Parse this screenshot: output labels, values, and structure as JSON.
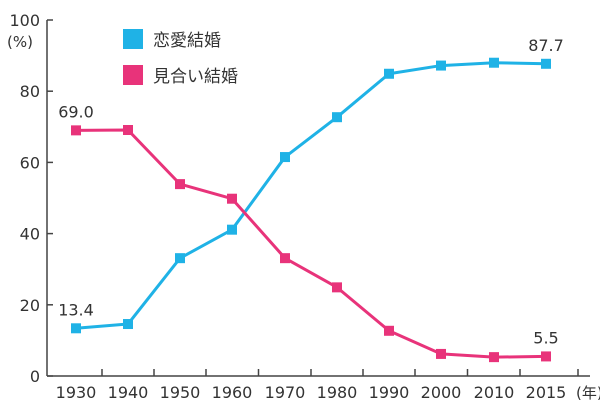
{
  "chart_data": {
    "type": "line",
    "categories": [
      "1930",
      "1940",
      "1950",
      "1960",
      "1970",
      "1980",
      "1990",
      "2000",
      "2010",
      "2015"
    ],
    "series": [
      {
        "name": "恋愛結婚",
        "color": "#1FB2E6",
        "values": [
          13.4,
          14.6,
          33.1,
          41.1,
          61.5,
          72.7,
          84.9,
          87.2,
          88.0,
          87.7
        ]
      },
      {
        "name": "見合い結婚",
        "color": "#E8337A",
        "values": [
          69.0,
          69.1,
          53.9,
          49.8,
          33.1,
          24.9,
          12.7,
          6.2,
          5.3,
          5.5
        ]
      }
    ],
    "data_labels": [
      {
        "series": 0,
        "index": 0,
        "text": "13.4"
      },
      {
        "series": 0,
        "index": 9,
        "text": "87.7"
      },
      {
        "series": 1,
        "index": 0,
        "text": "69.0"
      },
      {
        "series": 1,
        "index": 9,
        "text": "5.5"
      }
    ],
    "y_ticks": [
      "0",
      "20",
      "40",
      "60",
      "80",
      "100"
    ],
    "ylim": [
      0,
      100
    ],
    "y_unit": "(%)",
    "x_unit": "(年)",
    "title": "",
    "xlabel": "",
    "ylabel": "",
    "legend_position": "top-left",
    "grid": false
  }
}
